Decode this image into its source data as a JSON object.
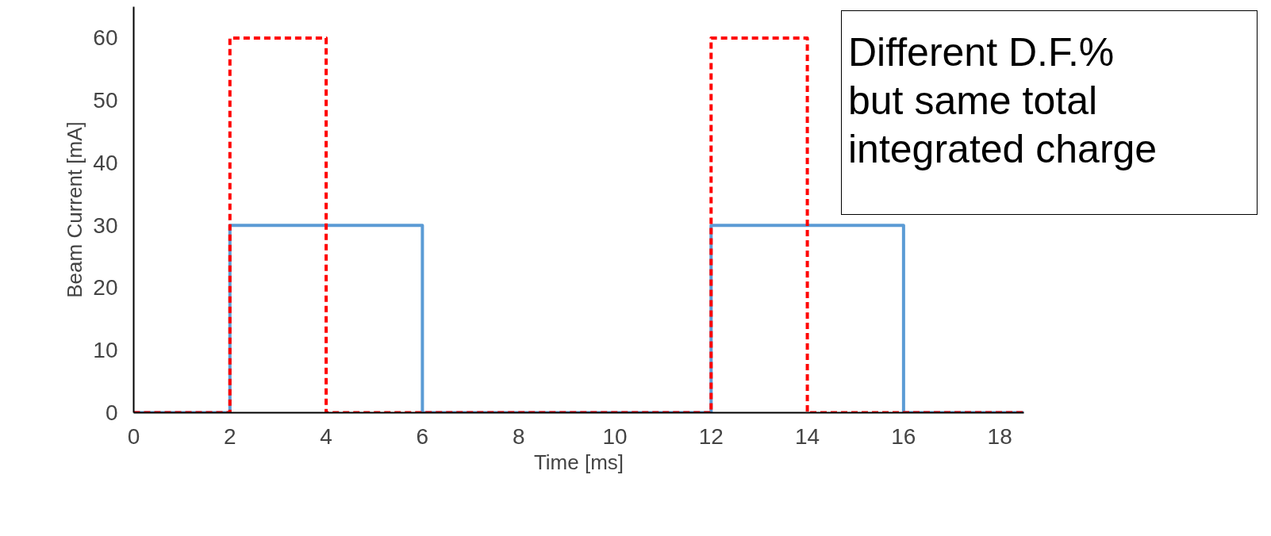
{
  "chart_data": {
    "type": "line",
    "xlabel": "Time [ms]",
    "ylabel": "Beam Current [mA]",
    "xlim": [
      0,
      18.5
    ],
    "xticks": [
      0,
      2,
      4,
      6,
      8,
      10,
      12,
      14,
      16,
      18
    ],
    "ylim": [
      0,
      65
    ],
    "yticks": [
      0,
      10,
      20,
      30,
      40,
      50,
      60
    ],
    "grid": false,
    "marker": "none",
    "series": [
      {
        "color": "#5b9bd5",
        "line_style": "solid",
        "x": [
          0,
          2,
          2,
          6,
          6,
          12,
          12,
          16,
          16,
          18.5
        ],
        "values": [
          0,
          0,
          30,
          30,
          0,
          0,
          30,
          30,
          0,
          0
        ]
      },
      {
        "color": "#ff0000",
        "line_style": "dashed",
        "x": [
          0,
          2,
          2,
          4,
          4,
          12,
          12,
          14,
          14,
          18.5
        ],
        "values": [
          0,
          0,
          60,
          60,
          0,
          0,
          60,
          60,
          0,
          0
        ]
      }
    ],
    "annotations": [
      "Different D.F.%\nbut same total\nintegrated charge"
    ]
  }
}
